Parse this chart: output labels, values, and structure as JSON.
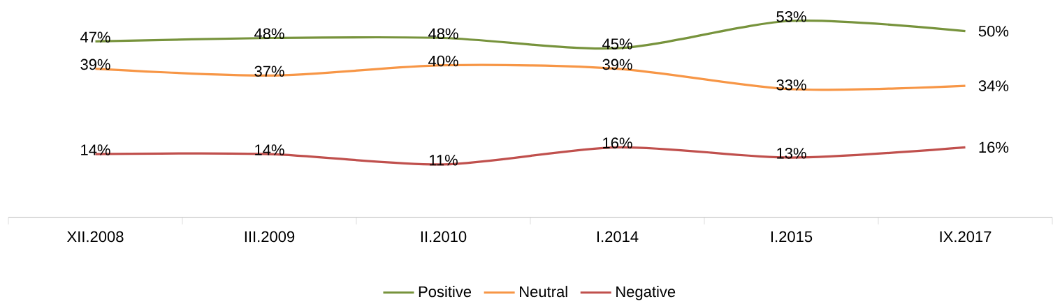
{
  "chart_data": {
    "type": "line",
    "categories": [
      "XII.2008",
      "III.2009",
      "II.2010",
      "I.2014",
      "I.2015",
      "IX.2017"
    ],
    "series": [
      {
        "name": "Positive",
        "color": "#77933c",
        "values": [
          47,
          48,
          48,
          45,
          53,
          50
        ],
        "value_labels": [
          "47%",
          "48%",
          "48%",
          "45%",
          "53%",
          "50%"
        ]
      },
      {
        "name": "Neutral",
        "color": "#f79646",
        "values": [
          39,
          37,
          40,
          39,
          33,
          34
        ],
        "value_labels": [
          "39%",
          "37%",
          "40%",
          "39%",
          "33%",
          "34%"
        ]
      },
      {
        "name": "Negative",
        "color": "#c0504d",
        "values": [
          14,
          14,
          11,
          16,
          13,
          16
        ],
        "value_labels": [
          "14%",
          "14%",
          "11%",
          "16%",
          "13%",
          "16%"
        ]
      }
    ],
    "legend": "bottom",
    "marker": "none"
  }
}
